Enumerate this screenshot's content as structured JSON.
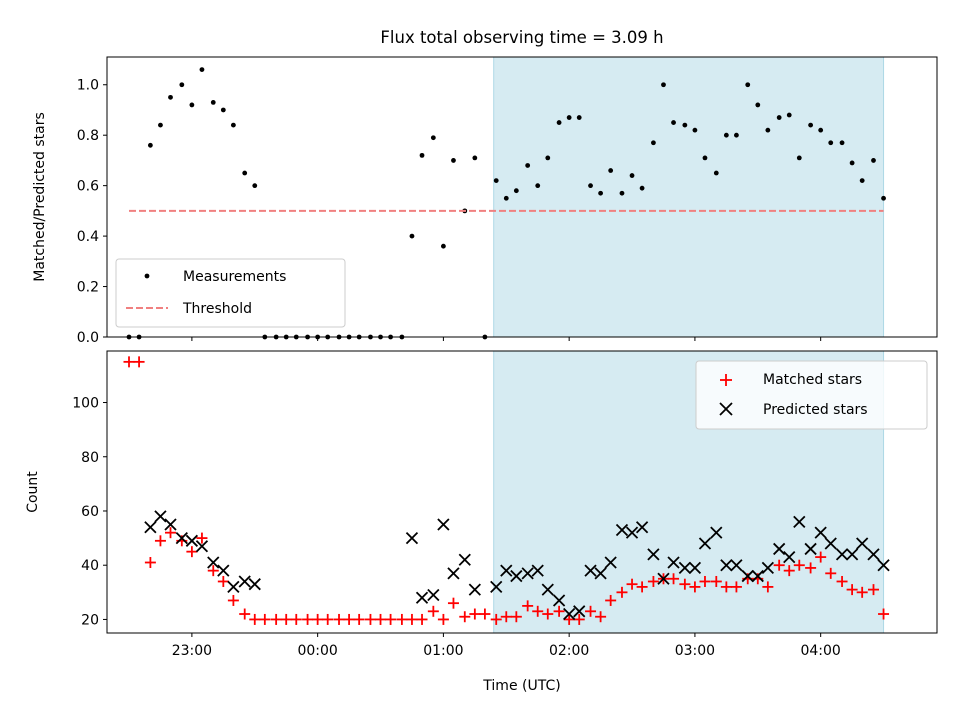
{
  "chart_data": [
    {
      "type": "scatter",
      "title": "Flux total observing time = 3.09 h",
      "ylabel": "Matched/Predicted stars",
      "ylim": [
        0,
        1.11
      ],
      "xlim": [
        -1.675,
        4.925
      ],
      "yticks": [
        0.0,
        0.2,
        0.4,
        0.6,
        0.8,
        1.0
      ],
      "grid": false,
      "legend": {
        "placement": "lower-left",
        "entries": [
          "Measurements",
          "Threshold"
        ]
      },
      "shaded_x_range": [
        1.4,
        4.5
      ],
      "shaded_color": "#add8e6",
      "series": [
        {
          "name": "Measurements",
          "color": "#000000",
          "marker": "dot",
          "points": [
            [
              -1.5,
              0
            ],
            [
              -1.42,
              0
            ],
            [
              -1.33,
              0.76
            ],
            [
              -1.25,
              0.84
            ],
            [
              -1.17,
              0.95
            ],
            [
              -1.08,
              1.0
            ],
            [
              -1.0,
              0.92
            ],
            [
              -0.92,
              1.06
            ],
            [
              -0.83,
              0.93
            ],
            [
              -0.75,
              0.9
            ],
            [
              -0.67,
              0.84
            ],
            [
              -0.58,
              0.65
            ],
            [
              -0.5,
              0.6
            ],
            [
              -0.42,
              0
            ],
            [
              -0.33,
              0
            ],
            [
              -0.25,
              0
            ],
            [
              -0.17,
              0
            ],
            [
              -0.08,
              0
            ],
            [
              0.0,
              0
            ],
            [
              0.08,
              0
            ],
            [
              0.17,
              0
            ],
            [
              0.25,
              0
            ],
            [
              0.33,
              0
            ],
            [
              0.42,
              0
            ],
            [
              0.5,
              0
            ],
            [
              0.58,
              0
            ],
            [
              0.67,
              0
            ],
            [
              0.75,
              0.4
            ],
            [
              0.83,
              0.72
            ],
            [
              0.92,
              0.79
            ],
            [
              1.0,
              0.36
            ],
            [
              1.08,
              0.7
            ],
            [
              1.17,
              0.5
            ],
            [
              1.25,
              0.71
            ],
            [
              1.33,
              0
            ],
            [
              1.42,
              0.62
            ],
            [
              1.5,
              0.55
            ],
            [
              1.58,
              0.58
            ],
            [
              1.67,
              0.68
            ],
            [
              1.75,
              0.6
            ],
            [
              1.83,
              0.71
            ],
            [
              1.92,
              0.85
            ],
            [
              2.0,
              0.87
            ],
            [
              2.08,
              0.87
            ],
            [
              2.17,
              0.6
            ],
            [
              2.25,
              0.57
            ],
            [
              2.33,
              0.66
            ],
            [
              2.42,
              0.57
            ],
            [
              2.5,
              0.64
            ],
            [
              2.58,
              0.59
            ],
            [
              2.67,
              0.77
            ],
            [
              2.75,
              1.0
            ],
            [
              2.83,
              0.85
            ],
            [
              2.92,
              0.84
            ],
            [
              3.0,
              0.82
            ],
            [
              3.08,
              0.71
            ],
            [
              3.17,
              0.65
            ],
            [
              3.25,
              0.8
            ],
            [
              3.33,
              0.8
            ],
            [
              3.42,
              1.0
            ],
            [
              3.5,
              0.92
            ],
            [
              3.58,
              0.82
            ],
            [
              3.67,
              0.87
            ],
            [
              3.75,
              0.88
            ],
            [
              3.83,
              0.71
            ],
            [
              3.92,
              0.84
            ],
            [
              4.0,
              0.82
            ],
            [
              4.08,
              0.77
            ],
            [
              4.17,
              0.77
            ],
            [
              4.25,
              0.69
            ],
            [
              4.33,
              0.62
            ],
            [
              4.42,
              0.7
            ],
            [
              4.5,
              0.55
            ]
          ]
        },
        {
          "name": "Threshold",
          "color": "#f08080",
          "style": "dashed",
          "points": [
            [
              -1.5,
              0.5
            ],
            [
              4.5,
              0.5
            ]
          ]
        }
      ]
    },
    {
      "type": "scatter",
      "xlabel": "Time (UTC)",
      "ylabel": "Count",
      "ylim": [
        15,
        119
      ],
      "xlim": [
        -1.675,
        4.925
      ],
      "yticks": [
        20,
        40,
        60,
        80,
        100
      ],
      "xticks": [
        {
          "value": -1,
          "label": "23:00"
        },
        {
          "value": 0,
          "label": "00:00"
        },
        {
          "value": 1,
          "label": "01:00"
        },
        {
          "value": 2,
          "label": "02:00"
        },
        {
          "value": 3,
          "label": "03:00"
        },
        {
          "value": 4,
          "label": "04:00"
        }
      ],
      "grid": false,
      "legend": {
        "placement": "top-right",
        "entries": [
          "Matched stars",
          "Predicted stars"
        ]
      },
      "shaded_x_range": [
        1.4,
        4.5
      ],
      "shaded_color": "#add8e6",
      "series": [
        {
          "name": "Matched stars",
          "color": "#ff0000",
          "marker": "plus",
          "points": [
            [
              -1.5,
              115
            ],
            [
              -1.42,
              115
            ],
            [
              -1.33,
              41
            ],
            [
              -1.25,
              49
            ],
            [
              -1.17,
              52
            ],
            [
              -1.08,
              49
            ],
            [
              -1.0,
              45
            ],
            [
              -0.92,
              50
            ],
            [
              -0.83,
              38
            ],
            [
              -0.75,
              34
            ],
            [
              -0.67,
              27
            ],
            [
              -0.58,
              22
            ],
            [
              -0.5,
              20
            ],
            [
              -0.42,
              20
            ],
            [
              -0.33,
              20
            ],
            [
              -0.25,
              20
            ],
            [
              -0.17,
              20
            ],
            [
              -0.08,
              20
            ],
            [
              0.0,
              20
            ],
            [
              0.08,
              20
            ],
            [
              0.17,
              20
            ],
            [
              0.25,
              20
            ],
            [
              0.33,
              20
            ],
            [
              0.42,
              20
            ],
            [
              0.5,
              20
            ],
            [
              0.58,
              20
            ],
            [
              0.67,
              20
            ],
            [
              0.75,
              20
            ],
            [
              0.83,
              20
            ],
            [
              0.92,
              23
            ],
            [
              1.0,
              20
            ],
            [
              1.08,
              26
            ],
            [
              1.17,
              21
            ],
            [
              1.25,
              22
            ],
            [
              1.33,
              22
            ],
            [
              1.42,
              20
            ],
            [
              1.5,
              21
            ],
            [
              1.58,
              21
            ],
            [
              1.67,
              25
            ],
            [
              1.75,
              23
            ],
            [
              1.83,
              22
            ],
            [
              1.92,
              23
            ],
            [
              2.0,
              20
            ],
            [
              2.08,
              20
            ],
            [
              2.17,
              23
            ],
            [
              2.25,
              21
            ],
            [
              2.33,
              27
            ],
            [
              2.42,
              30
            ],
            [
              2.5,
              33
            ],
            [
              2.58,
              32
            ],
            [
              2.67,
              34
            ],
            [
              2.75,
              35
            ],
            [
              2.83,
              35
            ],
            [
              2.92,
              33
            ],
            [
              3.0,
              32
            ],
            [
              3.08,
              34
            ],
            [
              3.17,
              34
            ],
            [
              3.25,
              32
            ],
            [
              3.33,
              32
            ],
            [
              3.42,
              35
            ],
            [
              3.5,
              35
            ],
            [
              3.58,
              32
            ],
            [
              3.67,
              40
            ],
            [
              3.75,
              38
            ],
            [
              3.83,
              40
            ],
            [
              3.92,
              39
            ],
            [
              4.0,
              43
            ],
            [
              4.08,
              37
            ],
            [
              4.17,
              34
            ],
            [
              4.25,
              31
            ],
            [
              4.33,
              30
            ],
            [
              4.42,
              31
            ],
            [
              4.5,
              22
            ]
          ]
        },
        {
          "name": "Predicted stars",
          "color": "#000000",
          "marker": "x",
          "points": [
            [
              -1.33,
              54
            ],
            [
              -1.25,
              58
            ],
            [
              -1.17,
              55
            ],
            [
              -1.08,
              50
            ],
            [
              -1.0,
              49
            ],
            [
              -0.92,
              47
            ],
            [
              -0.83,
              41
            ],
            [
              -0.75,
              38
            ],
            [
              -0.67,
              32
            ],
            [
              -0.58,
              34
            ],
            [
              -0.5,
              33
            ],
            [
              0.75,
              50
            ],
            [
              0.83,
              28
            ],
            [
              0.92,
              29
            ],
            [
              1.0,
              55
            ],
            [
              1.08,
              37
            ],
            [
              1.17,
              42
            ],
            [
              1.25,
              31
            ],
            [
              1.42,
              32
            ],
            [
              1.5,
              38
            ],
            [
              1.58,
              36
            ],
            [
              1.67,
              37
            ],
            [
              1.75,
              38
            ],
            [
              1.83,
              31
            ],
            [
              1.92,
              27
            ],
            [
              2.0,
              22
            ],
            [
              2.08,
              23
            ],
            [
              2.17,
              38
            ],
            [
              2.25,
              37
            ],
            [
              2.33,
              41
            ],
            [
              2.42,
              53
            ],
            [
              2.5,
              52
            ],
            [
              2.58,
              54
            ],
            [
              2.67,
              44
            ],
            [
              2.75,
              35
            ],
            [
              2.83,
              41
            ],
            [
              2.92,
              39
            ],
            [
              3.0,
              39
            ],
            [
              3.08,
              48
            ],
            [
              3.17,
              52
            ],
            [
              3.25,
              40
            ],
            [
              3.33,
              40
            ],
            [
              3.42,
              36
            ],
            [
              3.5,
              36
            ],
            [
              3.58,
              39
            ],
            [
              3.67,
              46
            ],
            [
              3.75,
              43
            ],
            [
              3.83,
              56
            ],
            [
              3.92,
              46
            ],
            [
              4.0,
              52
            ],
            [
              4.08,
              48
            ],
            [
              4.17,
              44
            ],
            [
              4.25,
              44
            ],
            [
              4.33,
              48
            ],
            [
              4.42,
              44
            ],
            [
              4.5,
              40
            ]
          ]
        }
      ]
    }
  ]
}
